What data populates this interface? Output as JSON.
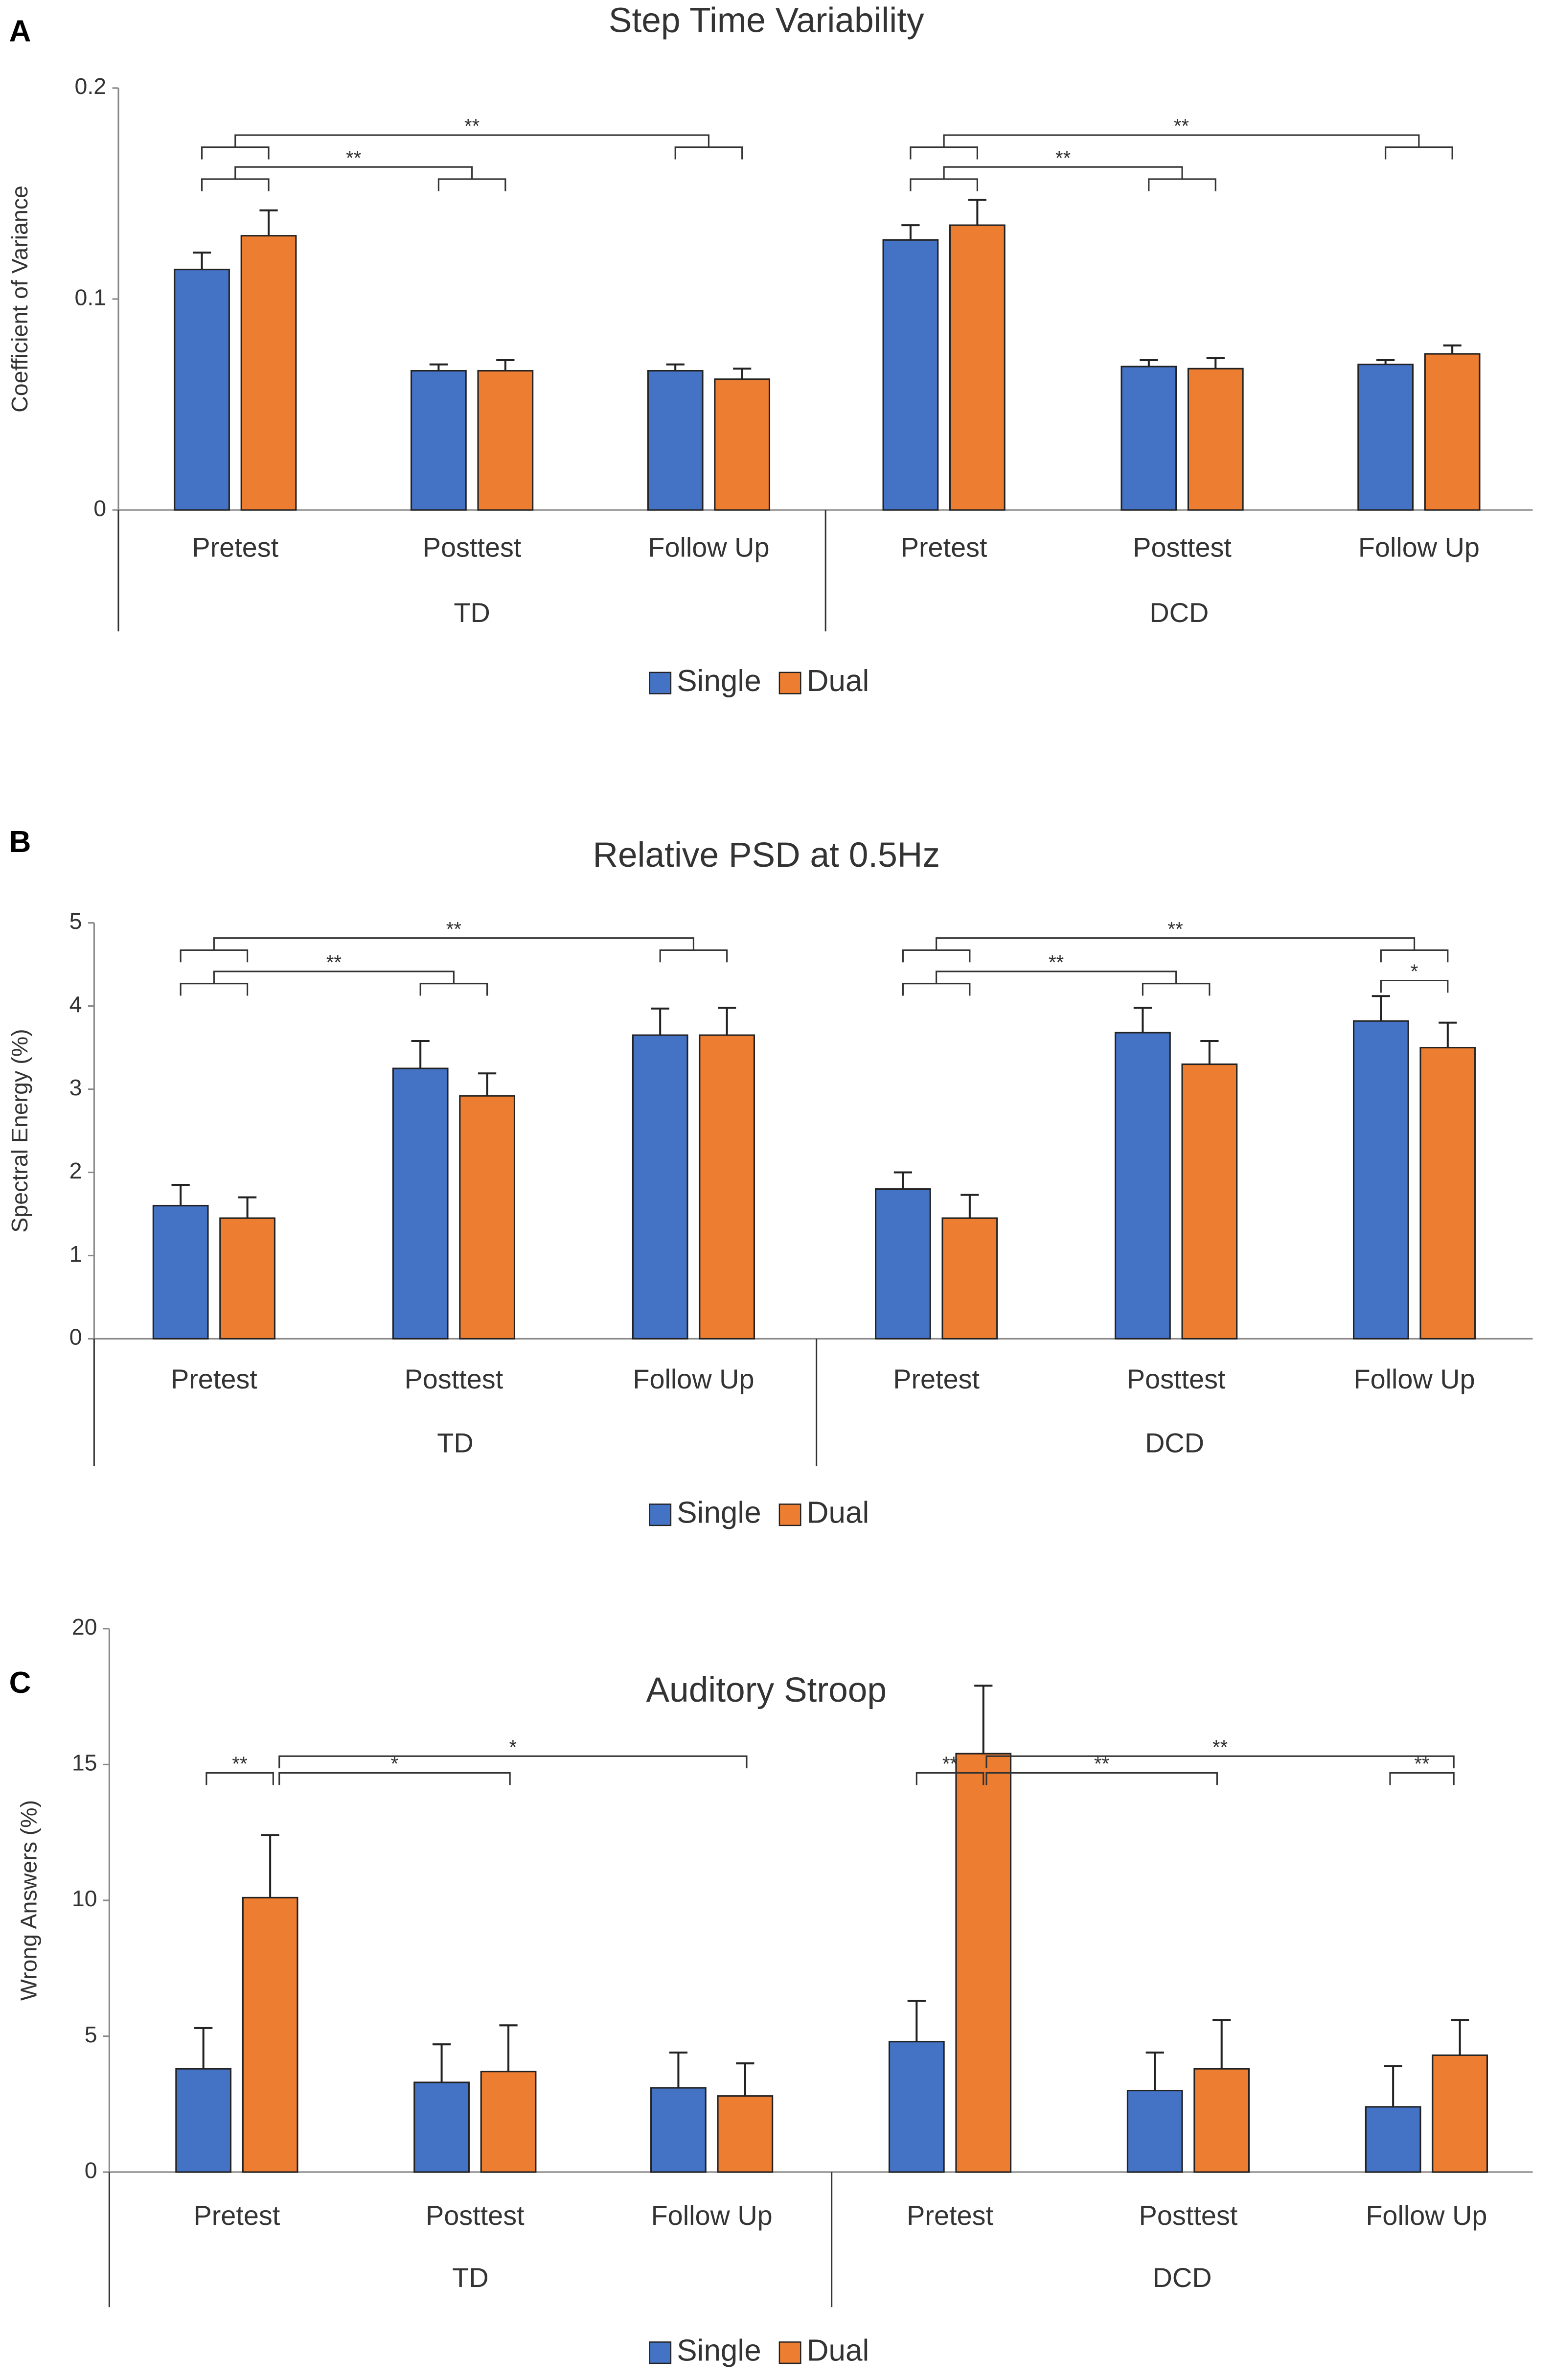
{
  "chart_data": [
    {
      "type": "bar",
      "panel": "A",
      "title": "Step Time Variability",
      "y_label": "Coefficient  of Variance",
      "categories": [
        "Pretest",
        "Posttest",
        "Follow Up",
        "Pretest",
        "Posttest",
        "Follow Up"
      ],
      "groups": [
        "TD",
        "DCD"
      ],
      "series": [
        {
          "name": "Single",
          "color": "#4472c4",
          "values": [
            0.114,
            0.066,
            0.066,
            0.128,
            0.068,
            0.069
          ],
          "errors": [
            0.008,
            0.003,
            0.003,
            0.007,
            0.003,
            0.002
          ]
        },
        {
          "name": "Dual",
          "color": "#ed7d31",
          "values": [
            0.13,
            0.066,
            0.062,
            0.135,
            0.067,
            0.074
          ],
          "errors": [
            0.012,
            0.005,
            0.005,
            0.012,
            0.005,
            0.004
          ]
        }
      ],
      "ylim": [
        0,
        0.2
      ],
      "yticks": [
        0,
        0.1,
        0.2
      ],
      "annotations": [
        "**",
        "**",
        "**",
        "**"
      ]
    },
    {
      "type": "bar",
      "panel": "B",
      "title": "Relative PSD at 0.5Hz",
      "y_label": "Spectral Energy (%)",
      "categories": [
        "Pretest",
        "Posttest",
        "Follow Up",
        "Pretest",
        "Posttest",
        "Follow Up"
      ],
      "groups": [
        "TD",
        "DCD"
      ],
      "series": [
        {
          "name": "Single",
          "color": "#4472c4",
          "values": [
            1.6,
            3.25,
            3.65,
            1.8,
            3.68,
            3.82
          ],
          "errors": [
            0.25,
            0.33,
            0.32,
            0.2,
            0.3,
            0.3
          ]
        },
        {
          "name": "Dual",
          "color": "#ed7d31",
          "values": [
            1.45,
            2.92,
            3.65,
            1.45,
            3.3,
            3.5
          ],
          "errors": [
            0.25,
            0.27,
            0.33,
            0.28,
            0.28,
            0.3
          ]
        }
      ],
      "ylim": [
        0,
        5
      ],
      "yticks": [
        0,
        1,
        2,
        3,
        4,
        5
      ],
      "annotations": [
        "**",
        "**",
        "**",
        "**",
        "*"
      ]
    },
    {
      "type": "bar",
      "panel": "C",
      "title": "Auditory Stroop",
      "y_label": "Wrong Answers (%)",
      "categories": [
        "Pretest",
        "Posttest",
        "Follow Up",
        "Pretest",
        "Posttest",
        "Follow Up"
      ],
      "groups": [
        "TD",
        "DCD"
      ],
      "series": [
        {
          "name": "Single",
          "color": "#4472c4",
          "values": [
            3.8,
            3.3,
            3.1,
            4.8,
            3.0,
            2.4
          ],
          "errors": [
            1.5,
            1.4,
            1.3,
            1.5,
            1.4,
            1.5
          ]
        },
        {
          "name": "Dual",
          "color": "#ed7d31",
          "values": [
            10.1,
            3.7,
            2.8,
            15.4,
            3.8,
            4.3
          ],
          "errors": [
            2.3,
            1.7,
            1.2,
            2.5,
            1.8,
            1.3
          ]
        }
      ],
      "ylim": [
        0,
        20
      ],
      "yticks": [
        0,
        5,
        10,
        15,
        20
      ],
      "annotations": [
        "**",
        "*",
        "*",
        "**",
        "**",
        "**",
        "**"
      ]
    }
  ]
}
